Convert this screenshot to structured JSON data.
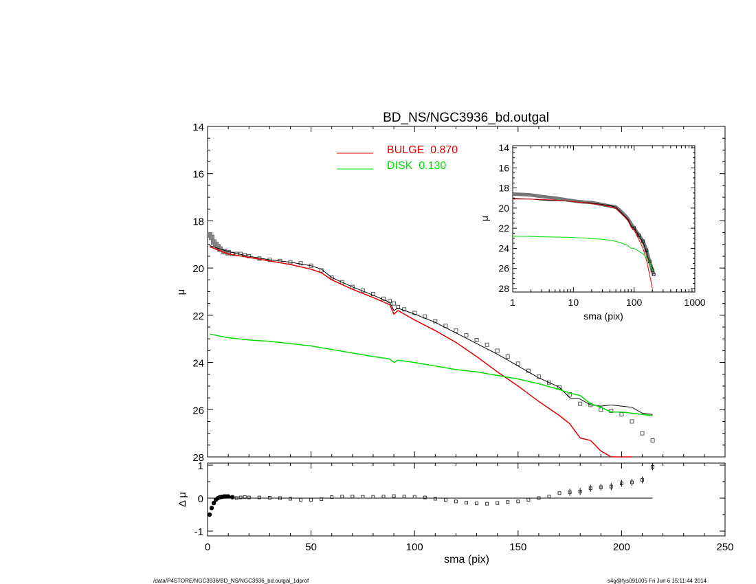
{
  "footer": {
    "left": "/data/P4STORE/NGC3936/BD_NS/NGC3936_bd.outgal_1dprof",
    "right": "s4g@fys091005  Fri Jun  6 15:11:44 2014"
  },
  "colors": {
    "bulge": "#e00000",
    "disk": "#00dd00",
    "data": "#000000",
    "model": "#000000"
  },
  "chart_data": [
    {
      "type": "line",
      "title": "BD_NS/NGC3936_bd.outgal",
      "xlabel": "",
      "ylabel": "μ",
      "xlim": [
        0,
        250
      ],
      "ylim": [
        28,
        14
      ],
      "y_inverted": true,
      "xticks": [
        0,
        50,
        100,
        150,
        200,
        250
      ],
      "yticks": [
        14,
        16,
        18,
        20,
        22,
        24,
        26,
        28
      ],
      "legend": [
        {
          "label": "BULGE  0.870",
          "color": "#e00000"
        },
        {
          "label": "DISK  0.130",
          "color": "#00dd00"
        }
      ],
      "legend_position": "top-center",
      "series": [
        {
          "name": "data",
          "style": "open-squares",
          "x": [
            1,
            2,
            3,
            4,
            5,
            6,
            8,
            10,
            12,
            14,
            16,
            18,
            20,
            25,
            30,
            35,
            40,
            45,
            50,
            55,
            60,
            65,
            70,
            75,
            80,
            85,
            88,
            90,
            92,
            95,
            100,
            105,
            110,
            115,
            120,
            125,
            130,
            135,
            140,
            145,
            150,
            155,
            160,
            165,
            170,
            175,
            180,
            185,
            190,
            195,
            200,
            205,
            210,
            215
          ],
          "y": [
            18.6,
            18.7,
            18.9,
            19.0,
            19.1,
            19.2,
            19.3,
            19.35,
            19.4,
            19.4,
            19.4,
            19.45,
            19.5,
            19.6,
            19.65,
            19.7,
            19.75,
            19.8,
            19.9,
            20.1,
            20.4,
            20.6,
            20.8,
            20.95,
            21.1,
            21.3,
            21.4,
            21.5,
            21.65,
            21.75,
            21.9,
            22.05,
            22.25,
            22.45,
            22.65,
            22.85,
            23.05,
            23.25,
            23.5,
            23.75,
            24.05,
            24.35,
            24.6,
            24.85,
            25.05,
            25.35,
            25.75,
            25.8,
            26.0,
            26.05,
            26.2,
            26.5,
            27.0,
            27.3
          ]
        },
        {
          "name": "model",
          "color": "#000000",
          "x": [
            1,
            10,
            20,
            30,
            40,
            50,
            55,
            60,
            70,
            80,
            88,
            90,
            92,
            100,
            110,
            120,
            130,
            140,
            150,
            160,
            170,
            175,
            180,
            185,
            190,
            195,
            200,
            205,
            210,
            215
          ],
          "y": [
            19.05,
            19.3,
            19.5,
            19.65,
            19.75,
            19.9,
            20.05,
            20.4,
            20.8,
            21.15,
            21.45,
            21.8,
            21.7,
            21.95,
            22.3,
            22.75,
            23.2,
            23.65,
            24.15,
            24.65,
            25.05,
            25.5,
            25.55,
            25.8,
            25.85,
            25.8,
            25.85,
            25.9,
            26.15,
            26.2
          ]
        },
        {
          "name": "bulge",
          "color": "#e00000",
          "x": [
            1,
            10,
            20,
            30,
            40,
            50,
            55,
            60,
            70,
            80,
            88,
            90,
            92,
            100,
            110,
            120,
            130,
            140,
            150,
            160,
            170,
            175,
            180,
            185,
            190,
            195,
            200,
            205,
            210
          ],
          "y": [
            19.1,
            19.4,
            19.55,
            19.7,
            19.85,
            20.05,
            20.2,
            20.5,
            20.9,
            21.25,
            21.55,
            21.95,
            21.8,
            22.2,
            22.65,
            23.15,
            23.75,
            24.4,
            25.0,
            25.65,
            26.25,
            26.6,
            27.2,
            27.3,
            27.75,
            28.0,
            28.1,
            28.2,
            28.3
          ]
        },
        {
          "name": "disk",
          "color": "#00dd00",
          "x": [
            1,
            10,
            20,
            30,
            40,
            50,
            60,
            70,
            80,
            88,
            90,
            92,
            100,
            110,
            120,
            130,
            140,
            150,
            160,
            170,
            175,
            180,
            185,
            190,
            195,
            200,
            205,
            210,
            215
          ],
          "y": [
            22.8,
            22.95,
            23.05,
            23.1,
            23.2,
            23.3,
            23.45,
            23.6,
            23.75,
            23.85,
            24.0,
            23.9,
            24.0,
            24.15,
            24.3,
            24.4,
            24.55,
            24.7,
            24.9,
            25.15,
            25.3,
            25.4,
            25.75,
            25.9,
            26.1,
            26.1,
            26.15,
            26.2,
            26.25
          ]
        }
      ]
    },
    {
      "type": "scatter",
      "title": "",
      "xlabel": "sma (pix)",
      "ylabel": "Δ μ",
      "xlim": [
        0,
        250
      ],
      "ylim": [
        -1,
        1
      ],
      "xticks": [
        0,
        50,
        100,
        150,
        200,
        250
      ],
      "yticks": [
        -1,
        0,
        1
      ],
      "series": [
        {
          "name": "residual",
          "x": [
            1,
            2,
            3,
            4,
            5,
            6,
            7,
            8,
            9,
            10,
            12,
            14,
            16,
            18,
            20,
            25,
            30,
            35,
            40,
            45,
            50,
            55,
            60,
            65,
            70,
            75,
            80,
            85,
            90,
            95,
            100,
            105,
            110,
            115,
            120,
            125,
            130,
            135,
            140,
            145,
            150,
            155,
            160,
            165,
            170,
            175,
            180,
            185,
            190,
            195,
            200,
            205,
            210,
            215
          ],
          "y": [
            -0.5,
            -0.3,
            -0.15,
            -0.05,
            0.0,
            0.03,
            0.04,
            0.05,
            0.05,
            0.05,
            0.03,
            0.0,
            0.02,
            0.03,
            0.02,
            0.02,
            0.01,
            0.0,
            -0.02,
            -0.05,
            -0.05,
            -0.03,
            0.03,
            0.05,
            0.05,
            0.04,
            0.04,
            0.05,
            0.06,
            0.05,
            0.04,
            0.02,
            -0.02,
            -0.05,
            -0.1,
            -0.14,
            -0.16,
            -0.17,
            -0.15,
            -0.12,
            -0.1,
            -0.05,
            0.0,
            0.05,
            0.15,
            0.18,
            0.2,
            0.3,
            0.33,
            0.35,
            0.45,
            0.48,
            0.55,
            0.95
          ]
        }
      ],
      "reference_line": 0
    },
    {
      "type": "line",
      "title": "",
      "xlabel": "sma (pix)",
      "ylabel": "μ",
      "x_scale": "log",
      "xlim": [
        1,
        1000
      ],
      "ylim": [
        28,
        14
      ],
      "y_inverted": true,
      "xticks": [
        1,
        10,
        100,
        1000
      ],
      "yticks": [
        14,
        16,
        18,
        20,
        22,
        24,
        26,
        28
      ],
      "series": [
        {
          "name": "data",
          "x": [
            1,
            1.5,
            2,
            3,
            5,
            8,
            12,
            15,
            20,
            30,
            40,
            50,
            60,
            70,
            80,
            90,
            100,
            120,
            140,
            160,
            180,
            200,
            210
          ],
          "y": [
            18.6,
            18.65,
            18.7,
            18.85,
            19.0,
            19.2,
            19.35,
            19.4,
            19.45,
            19.65,
            19.8,
            19.9,
            20.3,
            20.7,
            21.1,
            21.6,
            22.0,
            22.7,
            23.3,
            24.2,
            25.3,
            26.2,
            26.6
          ]
        },
        {
          "name": "model",
          "x": [
            1,
            2,
            3,
            5,
            8,
            12,
            15,
            20,
            30,
            40,
            50,
            60,
            70,
            80,
            90,
            100,
            120,
            140,
            160,
            180,
            200,
            210
          ],
          "y": [
            19.05,
            19.1,
            19.2,
            19.25,
            19.3,
            19.4,
            19.45,
            19.5,
            19.65,
            19.75,
            19.9,
            20.4,
            20.8,
            21.15,
            21.8,
            22.0,
            22.75,
            23.4,
            24.4,
            25.5,
            25.9,
            26.2
          ]
        },
        {
          "name": "bulge",
          "x": [
            1,
            2,
            3,
            5,
            8,
            12,
            15,
            20,
            30,
            40,
            50,
            60,
            70,
            80,
            90,
            100,
            120,
            140,
            160,
            180,
            200,
            210
          ],
          "y": [
            19.1,
            19.1,
            19.15,
            19.2,
            19.3,
            19.4,
            19.45,
            19.55,
            19.7,
            19.85,
            20.05,
            20.5,
            20.9,
            21.25,
            21.95,
            22.2,
            23.15,
            24.0,
            25.2,
            26.6,
            28.0,
            28.4
          ]
        },
        {
          "name": "disk",
          "x": [
            1,
            2,
            3,
            5,
            8,
            12,
            15,
            20,
            30,
            40,
            50,
            60,
            70,
            80,
            90,
            100,
            120,
            140,
            160,
            180,
            200,
            210
          ],
          "y": [
            22.8,
            22.82,
            22.85,
            22.88,
            22.9,
            22.95,
            22.97,
            23.05,
            23.1,
            23.2,
            23.3,
            23.45,
            23.6,
            23.75,
            24.0,
            24.0,
            24.3,
            24.55,
            24.9,
            25.45,
            26.1,
            26.2
          ]
        }
      ]
    }
  ]
}
